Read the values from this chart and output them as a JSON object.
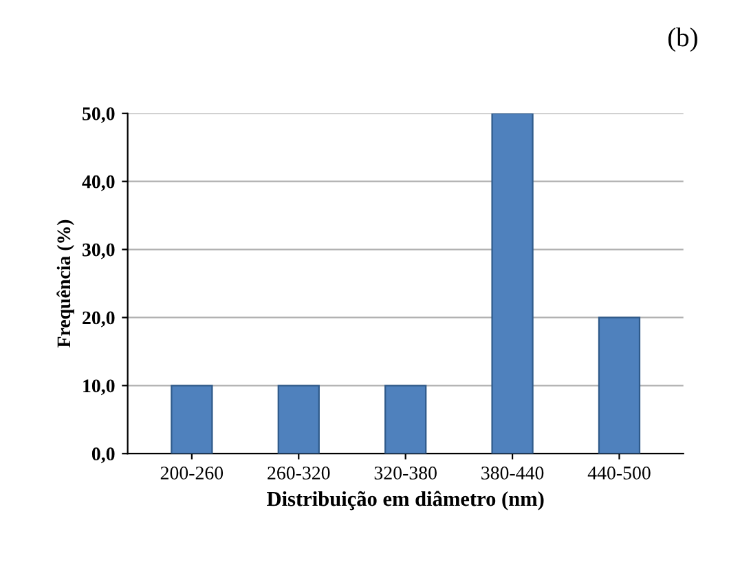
{
  "chart_data": {
    "type": "bar",
    "xlabel": "Distribuição em diâmetro (nm)",
    "ylabel": "Frequência (%)",
    "categories": [
      "200-260",
      "260-320",
      "320-380",
      "380-440",
      "440-500"
    ],
    "values": [
      10,
      10,
      10,
      50,
      20
    ],
    "color": "#4f81bd",
    "ylim": [
      0,
      50
    ],
    "yticks": [
      {
        "value": 0,
        "label": "0,0"
      },
      {
        "value": 10,
        "label": "10,0"
      },
      {
        "value": 20,
        "label": "20,0"
      },
      {
        "value": 30,
        "label": "30,0"
      },
      {
        "value": 40,
        "label": "40,0"
      },
      {
        "value": 50,
        "label": "50,0"
      }
    ],
    "grid": "y",
    "annotations": [
      "(b)"
    ]
  }
}
